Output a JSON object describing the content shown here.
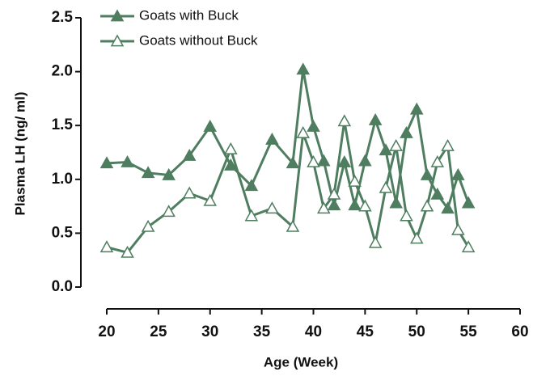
{
  "chart_data": {
    "type": "line",
    "x_label": "Age (Week)",
    "y_label": "Plasma LH (ng/ ml)",
    "x": [
      20,
      22,
      24,
      26,
      28,
      30,
      32,
      34,
      36,
      38,
      39,
      40,
      41,
      42,
      43,
      44,
      45,
      46,
      47,
      48,
      49,
      50,
      51,
      52,
      53,
      54,
      55
    ],
    "series": [
      {
        "name": "Goats with Buck",
        "color": "#4e7d5f",
        "marker": "filled",
        "values": [
          1.15,
          1.16,
          1.06,
          1.04,
          1.22,
          1.49,
          1.13,
          0.94,
          1.37,
          1.15,
          2.02,
          1.49,
          1.17,
          0.76,
          1.16,
          0.76,
          1.17,
          1.55,
          1.27,
          0.78,
          1.43,
          1.65,
          1.04,
          0.86,
          0.73,
          1.04,
          0.78
        ]
      },
      {
        "name": "Goats without Buck",
        "color": "#4e7d5f",
        "marker": "open",
        "values": [
          0.37,
          0.32,
          0.56,
          0.7,
          0.87,
          0.8,
          1.28,
          0.66,
          0.73,
          0.56,
          1.43,
          1.16,
          0.73,
          0.86,
          1.54,
          0.98,
          0.75,
          0.41,
          0.92,
          1.31,
          0.66,
          0.45,
          0.75,
          1.16,
          1.31,
          0.53,
          0.37
        ]
      }
    ],
    "xlim": [
      20,
      60
    ],
    "xticks": [
      20,
      25,
      30,
      35,
      40,
      45,
      50,
      55,
      60
    ],
    "ylim": [
      0,
      2.5
    ],
    "yticks": [
      {
        "value": 0,
        "label": "0.0"
      },
      0.5,
      {
        "value": 1,
        "label": "1.0"
      },
      1.5,
      {
        "value": 2,
        "label": "2.0"
      },
      2.5
    ]
  }
}
